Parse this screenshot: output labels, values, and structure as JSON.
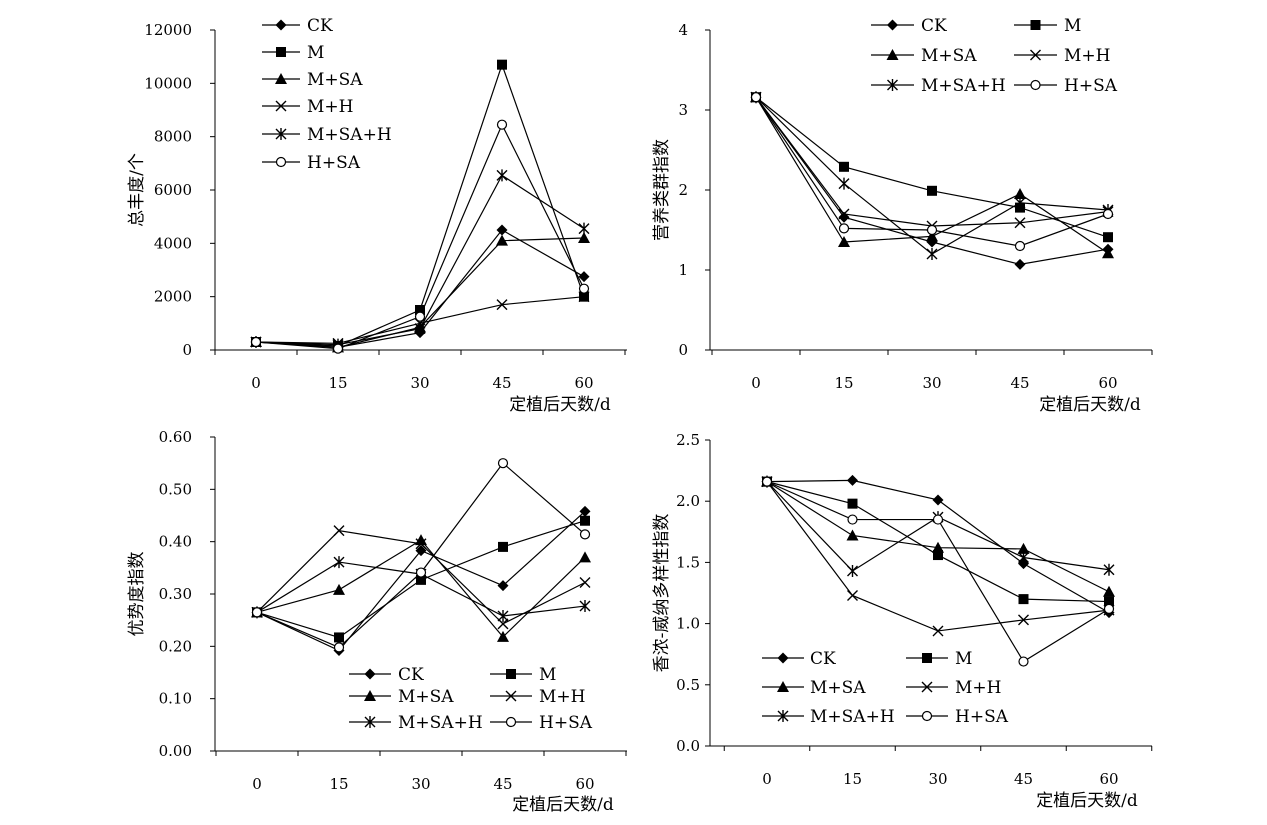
{
  "series_styles": {
    "CK": {
      "marker": "diamond-filled"
    },
    "M": {
      "marker": "square-filled"
    },
    "M+SA": {
      "marker": "triangle-filled"
    },
    "M+H": {
      "marker": "x-cross"
    },
    "M+SA+H": {
      "marker": "asterisk"
    },
    "H+SA": {
      "marker": "circle-open"
    }
  },
  "chart_data": [
    {
      "type": "line",
      "xlabel": "定植后天数/d",
      "ylabel": "总丰度/个",
      "categories": [
        "0",
        "15",
        "30",
        "45",
        "60"
      ],
      "yticks": [
        "0",
        "2000",
        "4000",
        "6000",
        "8000",
        "10000",
        "12000"
      ],
      "ylim": [
        0,
        12000
      ],
      "legend_placement": "top-left, single column",
      "series": [
        {
          "name": "CK",
          "values": [
            300,
            100,
            650,
            4500,
            2750
          ]
        },
        {
          "name": "M",
          "values": [
            300,
            150,
            1500,
            10700,
            2000
          ]
        },
        {
          "name": "M+SA",
          "values": [
            300,
            100,
            850,
            4100,
            4200
          ]
        },
        {
          "name": "M+H",
          "values": [
            300,
            250,
            1000,
            1700,
            2000
          ]
        },
        {
          "name": "M+SA+H",
          "values": [
            300,
            200,
            800,
            6550,
            4550
          ]
        },
        {
          "name": "H+SA",
          "values": [
            300,
            50,
            1250,
            8450,
            2300
          ]
        }
      ]
    },
    {
      "type": "line",
      "xlabel": "定植后天数/d",
      "ylabel": "营养类群指数",
      "categories": [
        "0",
        "15",
        "30",
        "45",
        "60"
      ],
      "yticks": [
        "0",
        "1",
        "2",
        "3",
        "4"
      ],
      "ylim": [
        0,
        4
      ],
      "legend_placement": "top, two columns",
      "series": [
        {
          "name": "CK",
          "values": [
            3.16,
            1.66,
            1.35,
            1.07,
            1.26
          ]
        },
        {
          "name": "M",
          "values": [
            3.16,
            2.29,
            1.99,
            1.78,
            1.41
          ]
        },
        {
          "name": "M+SA",
          "values": [
            3.16,
            1.35,
            1.42,
            1.95,
            1.21
          ]
        },
        {
          "name": "M+H",
          "values": [
            3.16,
            1.7,
            1.55,
            1.59,
            1.73
          ]
        },
        {
          "name": "M+SA+H",
          "values": [
            3.16,
            2.08,
            1.2,
            1.84,
            1.75
          ]
        },
        {
          "name": "H+SA",
          "values": [
            3.16,
            1.52,
            1.5,
            1.3,
            1.7
          ]
        }
      ]
    },
    {
      "type": "line",
      "xlabel": "定植后天数/d",
      "ylabel": "优势度指数",
      "categories": [
        "0",
        "15",
        "30",
        "45",
        "60"
      ],
      "yticks": [
        "0.00",
        "0.10",
        "0.20",
        "0.30",
        "0.40",
        "0.50",
        "0.60"
      ],
      "ylim": [
        0,
        0.6
      ],
      "legend_placement": "bottom-right, two columns",
      "series": [
        {
          "name": "CK",
          "values": [
            0.265,
            0.192,
            0.383,
            0.316,
            0.458
          ]
        },
        {
          "name": "M",
          "values": [
            0.265,
            0.217,
            0.327,
            0.39,
            0.44
          ]
        },
        {
          "name": "M+SA",
          "values": [
            0.265,
            0.308,
            0.403,
            0.218,
            0.37
          ]
        },
        {
          "name": "M+H",
          "values": [
            0.265,
            0.421,
            0.396,
            0.243,
            0.322
          ]
        },
        {
          "name": "M+SA+H",
          "values": [
            0.265,
            0.361,
            0.338,
            0.258,
            0.277
          ]
        },
        {
          "name": "H+SA",
          "values": [
            0.265,
            0.198,
            0.341,
            0.55,
            0.414
          ]
        }
      ]
    },
    {
      "type": "line",
      "xlabel": "定植后天数/d",
      "ylabel": "香浓-威纳多样性指数",
      "categories": [
        "0",
        "15",
        "30",
        "45",
        "60"
      ],
      "yticks": [
        "0.0",
        "0.5",
        "1.0",
        "1.5",
        "2.0",
        "2.5"
      ],
      "ylim": [
        0,
        2.5
      ],
      "legend_placement": "bottom-left, two columns",
      "series": [
        {
          "name": "CK",
          "values": [
            2.16,
            2.17,
            2.01,
            1.49,
            1.09
          ]
        },
        {
          "name": "M",
          "values": [
            2.16,
            1.98,
            1.56,
            1.2,
            1.18
          ]
        },
        {
          "name": "M+SA",
          "values": [
            2.16,
            1.72,
            1.62,
            1.61,
            1.26
          ]
        },
        {
          "name": "M+H",
          "values": [
            2.16,
            1.23,
            0.94,
            1.03,
            1.11
          ]
        },
        {
          "name": "M+SA+H",
          "values": [
            2.16,
            1.43,
            1.87,
            1.54,
            1.44
          ]
        },
        {
          "name": "H+SA",
          "values": [
            2.16,
            1.85,
            1.85,
            0.69,
            1.12
          ]
        }
      ]
    }
  ]
}
